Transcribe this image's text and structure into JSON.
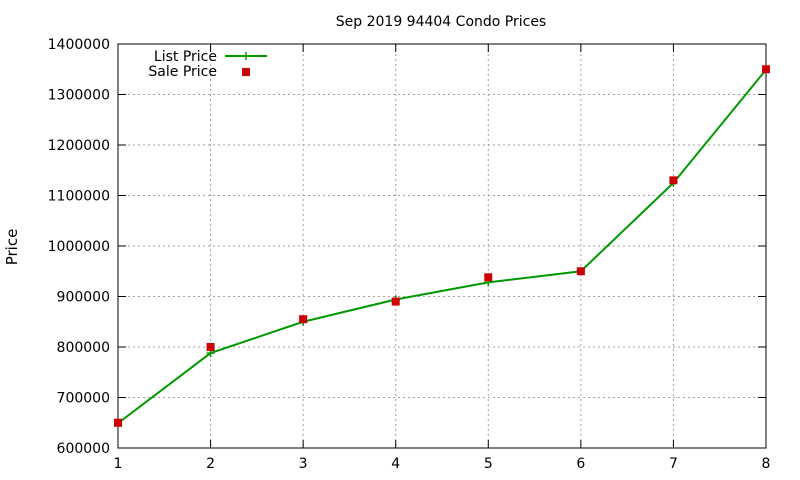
{
  "chart_data": {
    "type": "line",
    "title": "Sep 2019 94404 Condo Prices",
    "xlabel": "",
    "ylabel": "Price",
    "x": [
      1,
      2,
      3,
      4,
      5,
      6,
      7,
      8
    ],
    "xlim": [
      1,
      8
    ],
    "ylim": [
      600000,
      1400000
    ],
    "xticks": [
      "1",
      "2",
      "3",
      "4",
      "5",
      "6",
      "7",
      "8"
    ],
    "yticks": [
      "600000",
      "700000",
      "800000",
      "900000",
      "1000000",
      "1100000",
      "1200000",
      "1300000",
      "1400000"
    ],
    "grid": true,
    "legend_position": "top-left",
    "series": [
      {
        "name": "List Price",
        "style": "line-with-plus-markers",
        "color": "#009900",
        "values": [
          649000,
          788000,
          850000,
          894000,
          928000,
          950000,
          1125000,
          1349000
        ]
      },
      {
        "name": "Sale Price",
        "style": "square-markers",
        "color": "#cc0000",
        "values": [
          650000,
          800000,
          855000,
          890000,
          938000,
          950000,
          1130000,
          1350000
        ]
      }
    ]
  }
}
